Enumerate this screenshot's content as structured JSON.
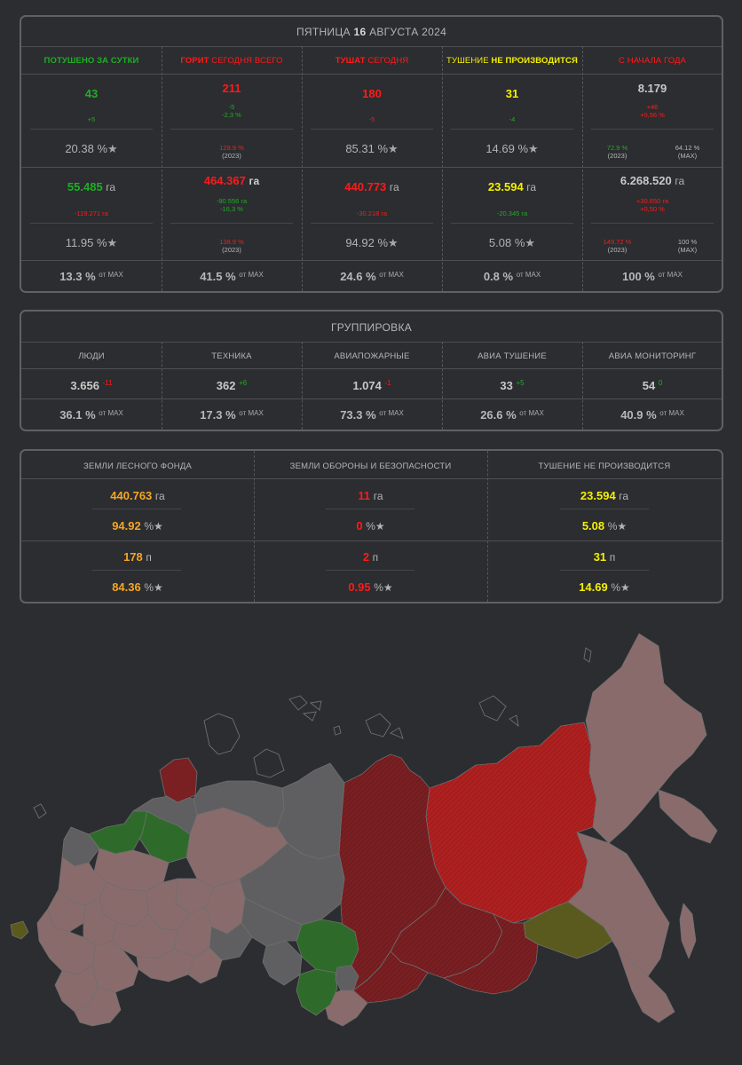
{
  "stats": {
    "date_prefix": "ПЯТНИЦА",
    "date_day": "16",
    "date_month_year": "АВГУСТА 2024",
    "headers": [
      {
        "a": "ПОТУШЕНО ЗА СУТКИ",
        "b": ""
      },
      {
        "a": "ГОРИТ",
        "b": "СЕГОДНЯ ВСЕГО"
      },
      {
        "a": "ТУШАТ",
        "b": "СЕГОДНЯ"
      },
      {
        "a": "ТУШЕНИЕ",
        "b": "НЕ ПРОИЗВОДИТСЯ"
      },
      {
        "a": "С НАЧАЛА ГОДА",
        "b": ""
      }
    ],
    "count_row": [
      {
        "value": "43",
        "delta1": "+5",
        "delta2": ""
      },
      {
        "value": "211",
        "delta1": "-5",
        "delta2": "-2,3 %"
      },
      {
        "value": "180",
        "delta1": "-5",
        "delta2": ""
      },
      {
        "value": "31",
        "delta1": "-4",
        "delta2": ""
      },
      {
        "value": "8.179",
        "delta1": "+46",
        "delta2": "+0,56 %"
      }
    ],
    "count_pct": [
      {
        "pct": "20.38 %"
      },
      {
        "pct": "128.9 %",
        "year": "(2023)"
      },
      {
        "pct": "85.31 %"
      },
      {
        "pct": "14.69 %"
      },
      {
        "pct_l": "72.9 %",
        "year_l": "(2023)",
        "pct_r": "64.12 %",
        "year_r": "(MAX)"
      }
    ],
    "area_row": [
      {
        "value": "55.485",
        "unit": "га",
        "delta1": "-119.271 га",
        "delta2": ""
      },
      {
        "value": "464.367",
        "unit": "га",
        "delta1": "-90.556 га",
        "delta2": "-16,3 %"
      },
      {
        "value": "440.773",
        "unit": "га",
        "delta1": "-30.218 га",
        "delta2": ""
      },
      {
        "value": "23.594",
        "unit": "га",
        "delta1": "-20.345 га",
        "delta2": ""
      },
      {
        "value": "6.268.520",
        "unit": "га",
        "delta1": "+30.650 га",
        "delta2": "+0,50 %"
      }
    ],
    "area_pct": [
      {
        "pct": "11.95 %"
      },
      {
        "pct": "138.9 %",
        "year": "(2023)"
      },
      {
        "pct": "94.92 %"
      },
      {
        "pct": "5.08 %"
      },
      {
        "pct_l": "149.72 %",
        "year_l": "(2023)",
        "pct_r": "100 %",
        "year_r": "(MAX)"
      }
    ],
    "max_row": [
      "13.3 %",
      "41.5 %",
      "24.6 %",
      "0.8 %",
      "100 %"
    ],
    "of_max": "от MAX"
  },
  "group": {
    "title": "ГРУППИРОВКА",
    "columns": [
      {
        "label": "ЛЮДИ",
        "value": "3.656",
        "delta": "-11",
        "delta_color": "#ff1a1a",
        "max": "36.1 %"
      },
      {
        "label": "ТЕХНИКА",
        "value": "362",
        "delta": "+6",
        "delta_color": "#1fae25",
        "max": "17.3 %"
      },
      {
        "label": "АВИАПОЖАРНЫЕ",
        "value": "1.074",
        "delta": "-1",
        "delta_color": "#ff1a1a",
        "max": "73.3 %"
      },
      {
        "label": "АВИА ТУШЕНИЕ",
        "value": "33",
        "delta": "+5",
        "delta_color": "#1fae25",
        "max": "26.6 %"
      },
      {
        "label": "АВИА МОНИТОРИНГ",
        "value": "54",
        "delta": "0",
        "delta_color": "#1fae25",
        "max": "40.9 %"
      }
    ],
    "of_max": "от MAX"
  },
  "lands": {
    "columns": [
      {
        "label": "ЗЕМЛИ ЛЕСНОГО ФОНДА",
        "area": "440.763",
        "area_unit": "га",
        "area_pct": "94.92",
        "count": "178",
        "count_unit": "п",
        "count_pct": "84.36",
        "color": "#f5a623"
      },
      {
        "label": "ЗЕМЛИ ОБОРОНЫ И БЕЗОПАСНОСТИ",
        "area": "11",
        "area_unit": "га",
        "area_pct": "0",
        "count": "2",
        "count_unit": "п",
        "count_pct": "0.95",
        "color": "#ff1a1a"
      },
      {
        "label": "ТУШЕНИЕ НЕ ПРОИЗВОДИТСЯ",
        "area": "23.594",
        "area_unit": "га",
        "area_pct": "5.08",
        "count": "31",
        "count_unit": "п",
        "count_pct": "14.69",
        "color": "#f5f000"
      }
    ],
    "pct_sign": "%",
    "star": "★"
  },
  "colors": {
    "green": "#1fae25",
    "red": "#ff1a1a",
    "yellow": "#f5f000",
    "orange": "#f5a623",
    "region_default": "#8a6b6b",
    "region_grey": "#5f5f61",
    "region_fire_high": "#b02020",
    "region_fire_mid": "#7a1f22",
    "region_extinguished": "#2e6b2a",
    "region_no_action": "#5b5a1e"
  }
}
